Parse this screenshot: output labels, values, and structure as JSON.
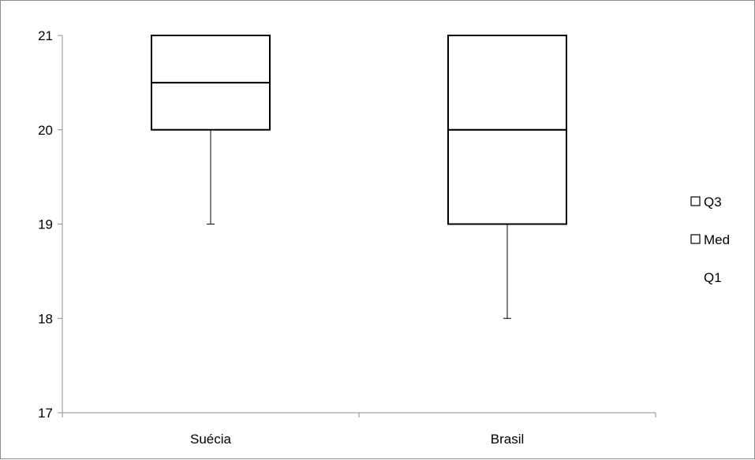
{
  "chart_data": {
    "type": "box",
    "categories": [
      "Suécia",
      "Brasil"
    ],
    "series": [
      {
        "name": "Q1",
        "values": [
          20,
          19
        ]
      },
      {
        "name": "Med",
        "values": [
          20.5,
          20
        ]
      },
      {
        "name": "Q3",
        "values": [
          21,
          21
        ]
      }
    ],
    "whisker_min": [
      19,
      18
    ],
    "y_ticks": [
      "17",
      "18",
      "19",
      "20",
      "21"
    ],
    "ylim": [
      17,
      21
    ],
    "legend": {
      "placement": "right",
      "entries": [
        "Q3",
        "Med",
        "Q1"
      ]
    },
    "grid": false,
    "colors": {
      "box_fill": "#ffffff",
      "box_stroke": "#000000",
      "axis": "#8c8c8c"
    }
  }
}
